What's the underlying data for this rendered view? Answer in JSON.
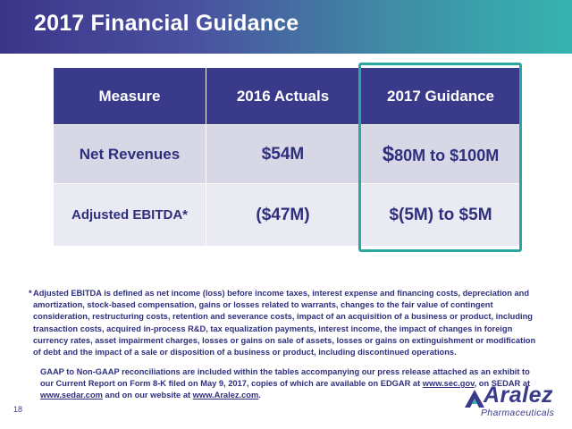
{
  "header": {
    "title": "2017 Financial Guidance"
  },
  "table": {
    "headers": [
      "Measure",
      "2016 Actuals",
      "2017 Guidance"
    ],
    "rows": [
      {
        "measure": "Net Revenues",
        "actual": "$54M",
        "guidance_dollar": "$",
        "guidance_rest": "80M to $100M"
      },
      {
        "measure": "Adjusted EBITDA*",
        "actual": "($47M)",
        "guidance": "$(5M) to $5M"
      }
    ]
  },
  "footnote": {
    "marker": "*",
    "text": "Adjusted EBITDA is defined as net income (loss) before income taxes, interest expense and financing costs, depreciation and amortization, stock-based compensation, gains or losses related to warrants, changes to the fair value of contingent consideration, restructuring costs, retention  and severance costs, impact of an acquisition of a business or product, including transaction costs, acquired in-process R&D, tax equalization payments, interest income, the impact of changes in foreign currency rates, asset impairment charges, losses or gains on sale of assets, losses or gains on extinguishment or modification of debt and the impact of a sale or disposition of a business or product, including discontinued operations."
  },
  "gaap": {
    "text_1": "GAAP to Non-GAAP reconciliations are included within the tables accompanying our press release attached as an exhibit to our Current Report on Form 8-K filed on May 9, 2017, copies of which are available on EDGAR at ",
    "link_sec": "www.sec.gov",
    "text_2": ", on SEDAR  at ",
    "link_sedar": "www.sedar.com",
    "text_3": " and on our website at ",
    "link_aralez": "www.Aralez.com",
    "text_4": "."
  },
  "page_number": "18",
  "logo": {
    "name": "Aralez",
    "subtitle": "Pharmaceuticals"
  },
  "colors": {
    "header_start": "#3c3589",
    "header_end": "#35b4b0",
    "table_header": "#3a3a8a",
    "highlight": "#2aa7a1",
    "text": "#2f2f7e"
  }
}
